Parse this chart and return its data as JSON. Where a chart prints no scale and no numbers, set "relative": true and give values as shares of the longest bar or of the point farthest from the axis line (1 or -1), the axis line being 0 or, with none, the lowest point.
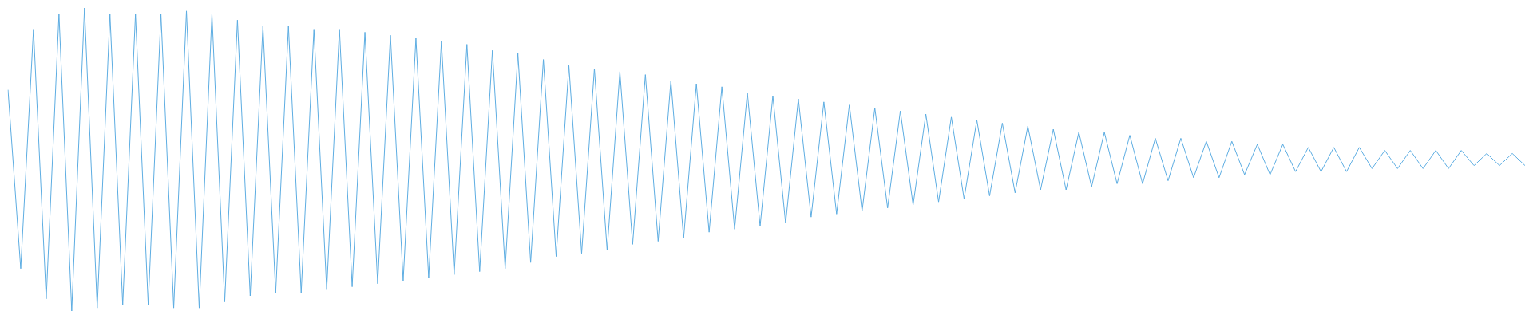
{
  "chart_data": {
    "type": "line",
    "relative": true,
    "categories": [
      null,
      null,
      null,
      null,
      null,
      null,
      null,
      null,
      null,
      null,
      null,
      null,
      null,
      null,
      null,
      null,
      null,
      null,
      null,
      null,
      null,
      null,
      null,
      null,
      null,
      null,
      null,
      null,
      null,
      null,
      null,
      null,
      null,
      null,
      null,
      null,
      null,
      null,
      null,
      null,
      null,
      null,
      null,
      null,
      null,
      null,
      null,
      null,
      null,
      null,
      null,
      null,
      null,
      null,
      null,
      null,
      null,
      null,
      null,
      null,
      null,
      null,
      null,
      null,
      null,
      null,
      null,
      null,
      null,
      null,
      null,
      null,
      null,
      null,
      null,
      null,
      null,
      null,
      null,
      null,
      null,
      null,
      null,
      null,
      null,
      null,
      null,
      null,
      null,
      null,
      null,
      null,
      null,
      null,
      null,
      null,
      null,
      null,
      null,
      null,
      null,
      null,
      null,
      null,
      null,
      null,
      null,
      null,
      null,
      null,
      null,
      null,
      null,
      null,
      null,
      null,
      null,
      null,
      null,
      null
    ],
    "series": [
      {
        "color": "#5dade2",
        "values": [
          0.73,
          0.14,
          0.93,
          0.04,
          0.98,
          0,
          1.0,
          0.01,
          0.98,
          0.02,
          0.98,
          0.02,
          0.98,
          0.01,
          0.99,
          0.01,
          0.98,
          0.03,
          0.96,
          0.05,
          0.94,
          0.06,
          0.94,
          0.06,
          0.93,
          0.07,
          0.93,
          0.08,
          0.92,
          0.09,
          0.91,
          0.1,
          0.9,
          0.11,
          0.89,
          0.12,
          0.88,
          0.13,
          0.86,
          0.14,
          0.85,
          0.16,
          0.83,
          0.18,
          0.81,
          0.19,
          0.8,
          0.2,
          0.79,
          0.22,
          0.78,
          0.23,
          0.76,
          0.24,
          0.75,
          0.26,
          0.74,
          0.27,
          0.72,
          0.28,
          0.71,
          0.29,
          0.7,
          0.31,
          0.69,
          0.32,
          0.68,
          0.33,
          0.67,
          0.34,
          0.66,
          0.35,
          0.65,
          0.36,
          0.64,
          0.37,
          0.63,
          0.38,
          0.62,
          0.39,
          0.61,
          0.4,
          0.6,
          0.4,
          0.59,
          0.41,
          0.59,
          0.42,
          0.58,
          0.42,
          0.57,
          0.43,
          0.57,
          0.44,
          0.56,
          0.44,
          0.56,
          0.45,
          0.55,
          0.45,
          0.55,
          0.46,
          0.54,
          0.46,
          0.54,
          0.46,
          0.54,
          0.47,
          0.53,
          0.47,
          0.53,
          0.47,
          0.53,
          0.47,
          0.53,
          0.48,
          0.52,
          0.48,
          0.52,
          0.48
        ]
      }
    ],
    "legend": false,
    "marker": "none",
    "line_style": "solid"
  }
}
